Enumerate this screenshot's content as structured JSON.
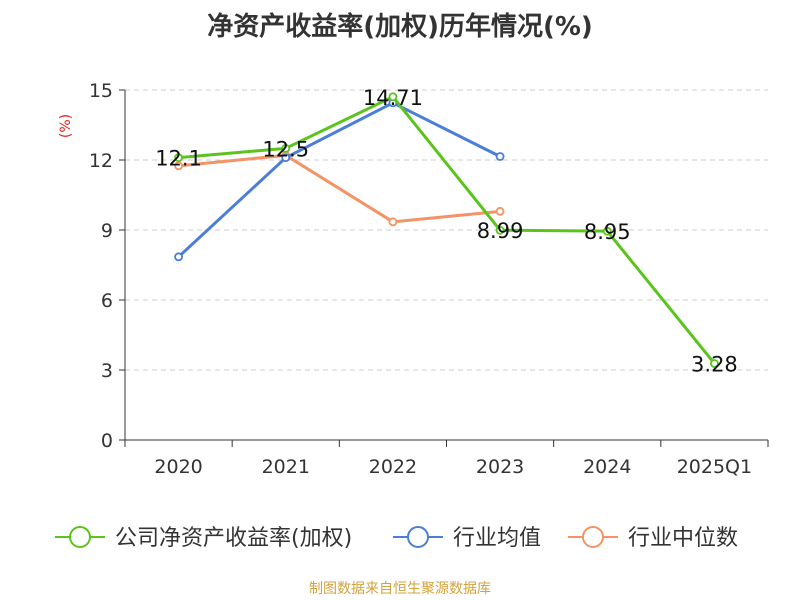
{
  "title": "净资产收益率(加权)历年情况(%)",
  "source": "制图数据来自恒生聚源数据库",
  "chart_data": {
    "type": "line",
    "title": "净资产收益率(加权)历年情况(%)",
    "ylabel": "(%)",
    "xlabel": "",
    "categories": [
      "2020",
      "2021",
      "2022",
      "2023",
      "2024",
      "2025Q1"
    ],
    "ylim": [
      0,
      15
    ],
    "yticks": [
      0,
      3,
      6,
      9,
      12,
      15
    ],
    "grid": true,
    "legend_position": "bottom",
    "series": [
      {
        "name": "公司净资产收益率(加权)",
        "color": "#5ac41c",
        "values": [
          12.1,
          12.5,
          14.71,
          8.99,
          8.95,
          3.28
        ],
        "labels": [
          "12.1",
          "12.5",
          "14.71",
          "8.99",
          "8.95",
          "3.28"
        ]
      },
      {
        "name": "行业均值",
        "color": "#4a7ed9",
        "values": [
          7.85,
          12.1,
          14.45,
          12.15,
          null,
          null
        ]
      },
      {
        "name": "行业中位数",
        "color": "#f29466",
        "values": [
          11.75,
          12.2,
          9.35,
          9.8,
          null,
          null
        ]
      }
    ]
  }
}
